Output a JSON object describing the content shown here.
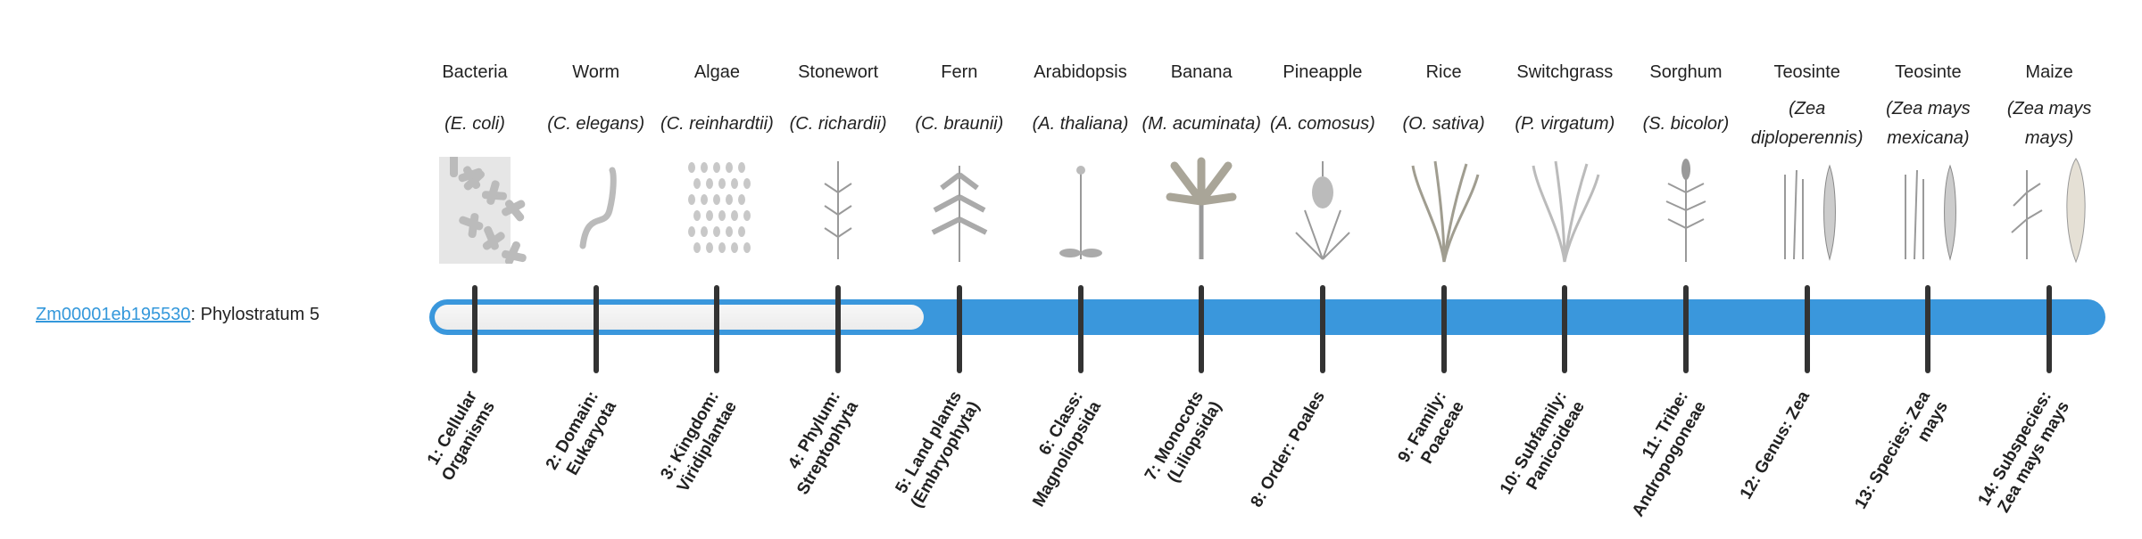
{
  "gene": {
    "id": "Zm00001eb195530",
    "suffix": ": Phylostratum 5"
  },
  "phylostratum": 5,
  "total_strata": 14,
  "colors": {
    "bar": "#3a97dc",
    "tick": "#333333",
    "link": "#3498db"
  },
  "organisms": [
    {
      "common": "Bacteria",
      "latin": "(E. coli)",
      "icon": "bacteria-icon",
      "rank": "1: Cellular Organisms"
    },
    {
      "common": "Worm",
      "latin": "(C. elegans)",
      "icon": "worm-icon",
      "rank": "2: Domain: Eukaryota"
    },
    {
      "common": "Algae",
      "latin": "(C. reinhardtii)",
      "icon": "algae-icon",
      "rank": "3: Kingdom: Viridiplantae"
    },
    {
      "common": "Stonewort",
      "latin": "(C. richardii)",
      "icon": "stonewort-icon",
      "rank": "4: Phylum: Streptophyta"
    },
    {
      "common": "Fern",
      "latin": "(C. braunii)",
      "icon": "fern-icon",
      "rank": "5: Land plants (Embryophyta)"
    },
    {
      "common": "Arabidopsis",
      "latin": "(A. thaliana)",
      "icon": "arabidopsis-icon",
      "rank": "6: Class: Magnoliopsida"
    },
    {
      "common": "Banana",
      "latin": "(M. acuminata)",
      "icon": "banana-icon",
      "rank": "7: Monocots (Liliopsida)"
    },
    {
      "common": "Pineapple",
      "latin": "(A. comosus)",
      "icon": "pineapple-icon",
      "rank": "8: Order: Poales"
    },
    {
      "common": "Rice",
      "latin": "(O. sativa)",
      "icon": "rice-icon",
      "rank": "9: Family: Poaceae"
    },
    {
      "common": "Switchgrass",
      "latin": "(P. virgatum)",
      "icon": "switchgrass-icon",
      "rank": "10: Subfamily: Panicoideae"
    },
    {
      "common": "Sorghum",
      "latin": "(S. bicolor)",
      "icon": "sorghum-icon",
      "rank": "11: Tribe: Andropogoneae"
    },
    {
      "common": "Teosinte",
      "latin": "(Zea diploperennis)",
      "icon": "teosinte-icon",
      "rank": "12: Genus: Zea"
    },
    {
      "common": "Teosinte",
      "latin": "(Zea mays mexicana)",
      "icon": "teosinte-icon",
      "rank": "13: Species: Zea mays"
    },
    {
      "common": "Maize",
      "latin": "(Zea mays mays)",
      "icon": "maize-icon",
      "rank": "14: Subspecies: Zea mays mays"
    }
  ]
}
